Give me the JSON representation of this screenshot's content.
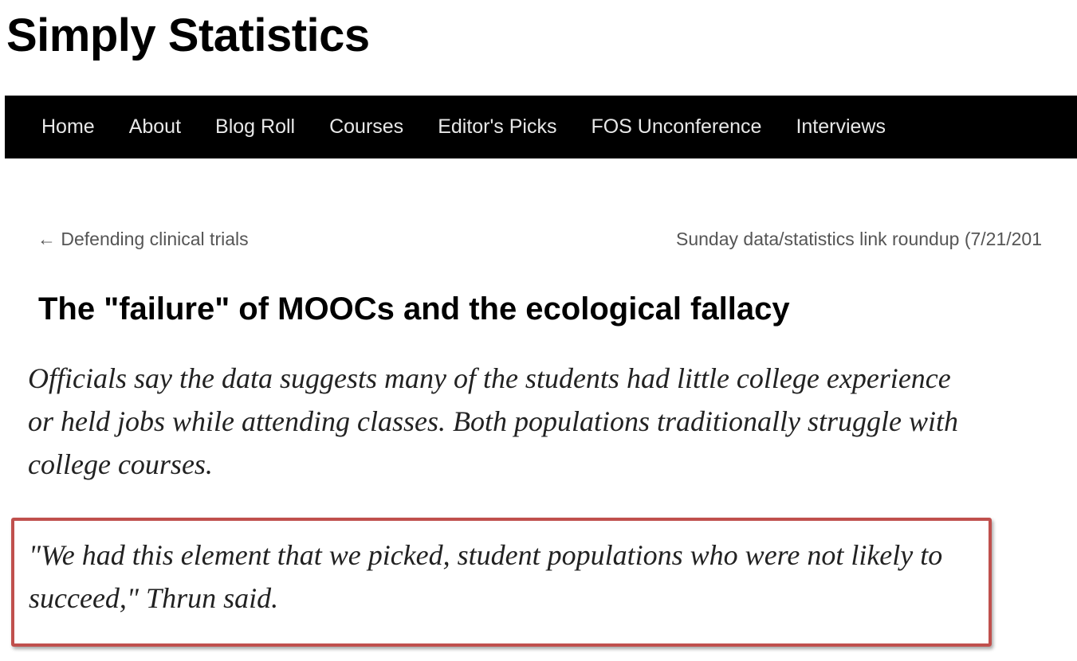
{
  "site": {
    "title": "Simply Statistics"
  },
  "nav": {
    "items": [
      {
        "label": "Home"
      },
      {
        "label": "About"
      },
      {
        "label": "Blog Roll"
      },
      {
        "label": "Courses"
      },
      {
        "label": "Editor's Picks"
      },
      {
        "label": "FOS Unconference"
      },
      {
        "label": "Interviews"
      }
    ]
  },
  "post_nav": {
    "previous": "← Defending clinical trials",
    "next": "Sunday data/statistics link roundup (7/21/201"
  },
  "post": {
    "title": "The \"failure\" of MOOCs and the ecological fallacy",
    "quote": "Officials say the data suggests many of the students had little college experience or held jobs while attending classes. Both populations traditionally struggle with college courses.",
    "highlighted_quote": "\"We had this element that we picked, student populations who were not likely to succeed,\" Thrun said."
  },
  "colors": {
    "nav_background": "#000000",
    "highlight_border": "#c0504d"
  }
}
